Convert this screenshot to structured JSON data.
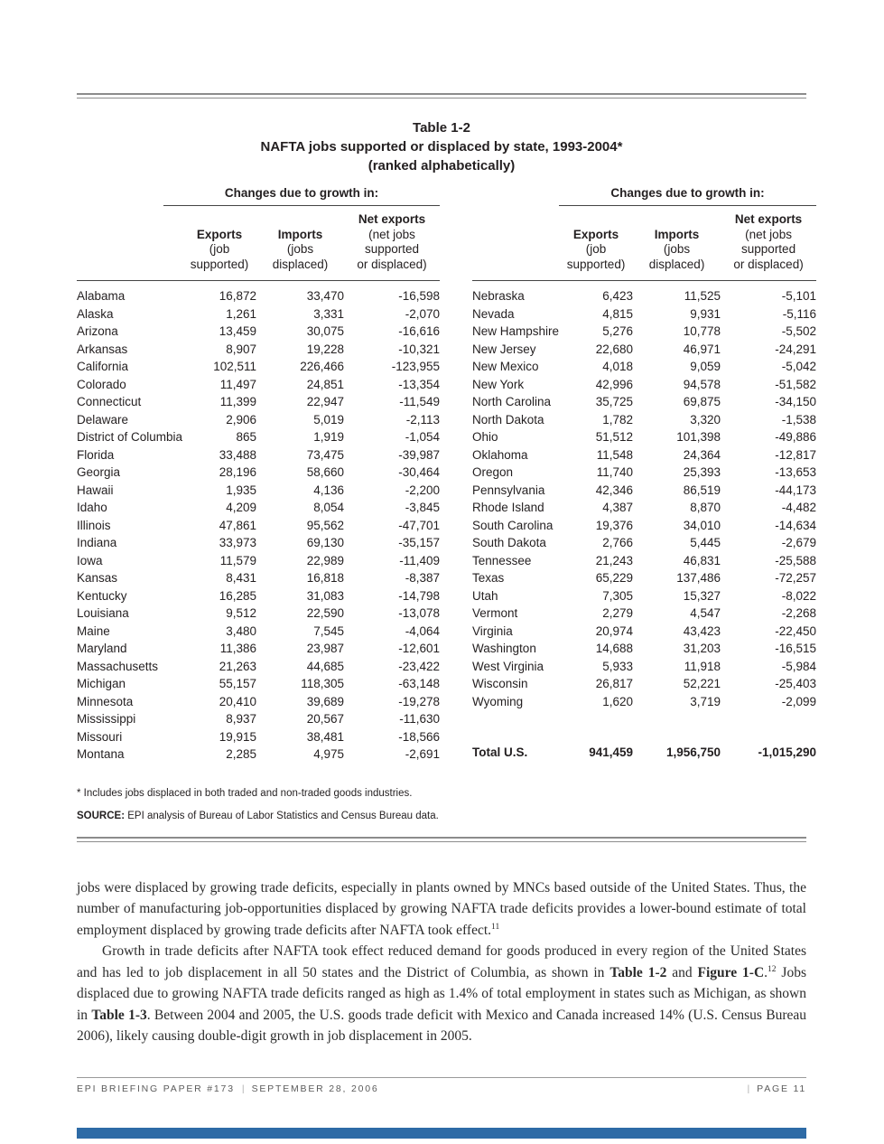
{
  "page": {
    "accent_color": "#2e6ba6"
  },
  "table": {
    "title1": "Table 1-2",
    "title2": "NAFTA jobs supported or displaced by state, 1993-2004*",
    "title3": "(ranked alphabetically)",
    "group_header": "Changes due to growth in:",
    "col_exports": {
      "label": "Exports",
      "sub1": "(job",
      "sub2": "supported)"
    },
    "col_imports": {
      "label": "Imports",
      "sub1": "(jobs",
      "sub2": "displaced)"
    },
    "col_net": {
      "label": "Net exports",
      "sub1": "(net jobs",
      "sub2": "supported",
      "sub3": "or displaced)"
    },
    "left_rows": [
      {
        "state": "Alabama",
        "exports": "16,872",
        "imports": "33,470",
        "net": "-16,598"
      },
      {
        "state": "Alaska",
        "exports": "1,261",
        "imports": "3,331",
        "net": "-2,070"
      },
      {
        "state": "Arizona",
        "exports": "13,459",
        "imports": "30,075",
        "net": "-16,616"
      },
      {
        "state": "Arkansas",
        "exports": "8,907",
        "imports": "19,228",
        "net": "-10,321"
      },
      {
        "state": "California",
        "exports": "102,511",
        "imports": "226,466",
        "net": "-123,955"
      },
      {
        "state": "Colorado",
        "exports": "11,497",
        "imports": "24,851",
        "net": "-13,354"
      },
      {
        "state": "Connecticut",
        "exports": "11,399",
        "imports": "22,947",
        "net": "-11,549"
      },
      {
        "state": "Delaware",
        "exports": "2,906",
        "imports": "5,019",
        "net": "-2,113"
      },
      {
        "state": "District of Columbia",
        "exports": "865",
        "imports": "1,919",
        "net": "-1,054"
      },
      {
        "state": "Florida",
        "exports": "33,488",
        "imports": "73,475",
        "net": "-39,987"
      },
      {
        "state": "Georgia",
        "exports": "28,196",
        "imports": "58,660",
        "net": "-30,464"
      },
      {
        "state": "Hawaii",
        "exports": "1,935",
        "imports": "4,136",
        "net": "-2,200"
      },
      {
        "state": "Idaho",
        "exports": "4,209",
        "imports": "8,054",
        "net": "-3,845"
      },
      {
        "state": "Illinois",
        "exports": "47,861",
        "imports": "95,562",
        "net": "-47,701"
      },
      {
        "state": "Indiana",
        "exports": "33,973",
        "imports": "69,130",
        "net": "-35,157"
      },
      {
        "state": "Iowa",
        "exports": "11,579",
        "imports": "22,989",
        "net": "-11,409"
      },
      {
        "state": "Kansas",
        "exports": "8,431",
        "imports": "16,818",
        "net": "-8,387"
      },
      {
        "state": "Kentucky",
        "exports": "16,285",
        "imports": "31,083",
        "net": "-14,798"
      },
      {
        "state": "Louisiana",
        "exports": "9,512",
        "imports": "22,590",
        "net": "-13,078"
      },
      {
        "state": "Maine",
        "exports": "3,480",
        "imports": "7,545",
        "net": "-4,064"
      },
      {
        "state": "Maryland",
        "exports": "11,386",
        "imports": "23,987",
        "net": "-12,601"
      },
      {
        "state": "Massachusetts",
        "exports": "21,263",
        "imports": "44,685",
        "net": "-23,422"
      },
      {
        "state": "Michigan",
        "exports": "55,157",
        "imports": "118,305",
        "net": "-63,148"
      },
      {
        "state": "Minnesota",
        "exports": "20,410",
        "imports": "39,689",
        "net": "-19,278"
      },
      {
        "state": "Mississippi",
        "exports": "8,937",
        "imports": "20,567",
        "net": "-11,630"
      },
      {
        "state": "Missouri",
        "exports": "19,915",
        "imports": "38,481",
        "net": "-18,566"
      },
      {
        "state": "Montana",
        "exports": "2,285",
        "imports": "4,975",
        "net": "-2,691"
      }
    ],
    "right_rows": [
      {
        "state": "Nebraska",
        "exports": "6,423",
        "imports": "11,525",
        "net": "-5,101"
      },
      {
        "state": "Nevada",
        "exports": "4,815",
        "imports": "9,931",
        "net": "-5,116"
      },
      {
        "state": "New Hampshire",
        "exports": "5,276",
        "imports": "10,778",
        "net": "-5,502"
      },
      {
        "state": "New Jersey",
        "exports": "22,680",
        "imports": "46,971",
        "net": "-24,291"
      },
      {
        "state": "New Mexico",
        "exports": "4,018",
        "imports": "9,059",
        "net": "-5,042"
      },
      {
        "state": "New York",
        "exports": "42,996",
        "imports": "94,578",
        "net": "-51,582"
      },
      {
        "state": "North Carolina",
        "exports": "35,725",
        "imports": "69,875",
        "net": "-34,150"
      },
      {
        "state": "North Dakota",
        "exports": "1,782",
        "imports": "3,320",
        "net": "-1,538"
      },
      {
        "state": "Ohio",
        "exports": "51,512",
        "imports": "101,398",
        "net": "-49,886"
      },
      {
        "state": "Oklahoma",
        "exports": "11,548",
        "imports": "24,364",
        "net": "-12,817"
      },
      {
        "state": "Oregon",
        "exports": "11,740",
        "imports": "25,393",
        "net": "-13,653"
      },
      {
        "state": "Pennsylvania",
        "exports": "42,346",
        "imports": "86,519",
        "net": "-44,173"
      },
      {
        "state": "Rhode Island",
        "exports": "4,387",
        "imports": "8,870",
        "net": "-4,482"
      },
      {
        "state": "South Carolina",
        "exports": "19,376",
        "imports": "34,010",
        "net": "-14,634"
      },
      {
        "state": "South Dakota",
        "exports": "2,766",
        "imports": "5,445",
        "net": "-2,679"
      },
      {
        "state": "Tennessee",
        "exports": "21,243",
        "imports": "46,831",
        "net": "-25,588"
      },
      {
        "state": "Texas",
        "exports": "65,229",
        "imports": "137,486",
        "net": "-72,257"
      },
      {
        "state": "Utah",
        "exports": "7,305",
        "imports": "15,327",
        "net": "-8,022"
      },
      {
        "state": "Vermont",
        "exports": "2,279",
        "imports": "4,547",
        "net": "-2,268"
      },
      {
        "state": "Virginia",
        "exports": "20,974",
        "imports": "43,423",
        "net": "-22,450"
      },
      {
        "state": "Washington",
        "exports": "14,688",
        "imports": "31,203",
        "net": "-16,515"
      },
      {
        "state": "West Virginia",
        "exports": "5,933",
        "imports": "11,918",
        "net": "-5,984"
      },
      {
        "state": "Wisconsin",
        "exports": "26,817",
        "imports": "52,221",
        "net": "-25,403"
      },
      {
        "state": "Wyoming",
        "exports": "1,620",
        "imports": "3,719",
        "net": "-2,099"
      }
    ],
    "total_row": {
      "state": "Total U.S.",
      "exports": "941,459",
      "imports": "1,956,750",
      "net": "-1,015,290",
      "bold": true
    },
    "footnote": "* Includes jobs displaced in both traded and non-traded goods industries.",
    "source_label": "SOURCE:",
    "source_text": " EPI analysis of Bureau of Labor Statistics and Census Bureau data."
  },
  "body": {
    "para1": [
      {
        "t": "jobs were displaced by growing trade deficits, especially in plants owned by MNCs based outside of the United States. Thus, the number of manufacturing job-opportunities displaced by growing NAFTA trade deficits provides a lower-bound estimate of total employment displaced by growing trade deficits after NAFTA took effect."
      },
      {
        "t": "11",
        "sup": true
      }
    ],
    "para2": [
      {
        "t": "Growth in trade deficits after NAFTA took effect reduced demand for goods produced in every region of the United States and has led to job displacement in all 50 states and the District of Columbia, as shown in "
      },
      {
        "t": "Table 1-2",
        "bold": true
      },
      {
        "t": " and "
      },
      {
        "t": "Figure 1-C",
        "bold": true
      },
      {
        "t": "."
      },
      {
        "t": "12",
        "sup": true
      },
      {
        "t": " Jobs displaced due to growing NAFTA trade deficits ranged as high as 1.4% of total employment in states such as Michigan, as shown in "
      },
      {
        "t": "Table 1-3",
        "bold": true
      },
      {
        "t": ". Between 2004 and 2005, the U.S. goods trade deficit with Mexico and Canada increased 14% (U.S. Census Bureau 2006), likely causing double-digit growth in job displacement in 2005."
      }
    ]
  },
  "footer": {
    "paper_id": "EPI BRIEFING PAPER #173",
    "separator": "|",
    "date": "SEPTEMBER 28, 2006",
    "page_number": "PAGE 11"
  }
}
